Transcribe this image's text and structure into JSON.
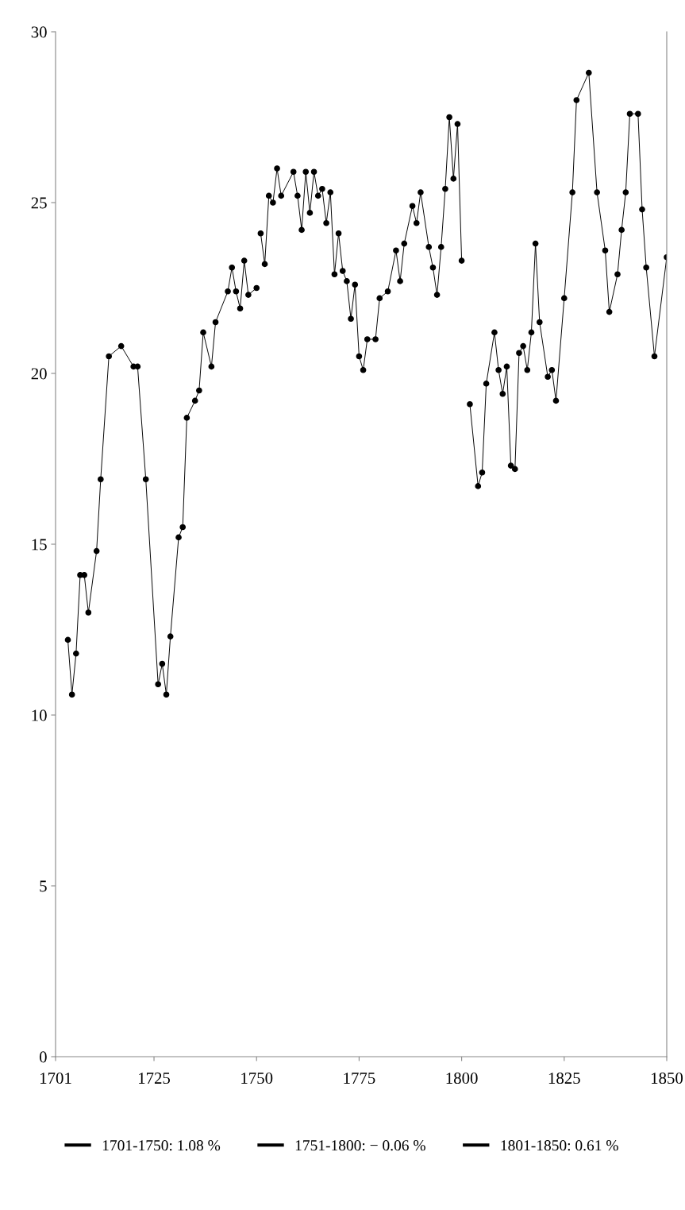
{
  "chart_data": {
    "type": "line",
    "xlim": [
      1701,
      1850
    ],
    "xticks": [
      1701,
      1725,
      1750,
      1775,
      1800,
      1825,
      1850
    ],
    "ylim": [
      0,
      30
    ],
    "yticks": [
      0,
      5,
      10,
      15,
      20,
      25,
      30
    ],
    "grid": false,
    "legend": "bottom",
    "marker": "circle",
    "line_style": "solid",
    "series": [
      {
        "name": "1701-1750: 1.08 %",
        "color": "#000000",
        "x": [
          1704,
          1705,
          1706,
          1707,
          1708,
          1709,
          1711,
          1712,
          1714,
          1717,
          1720,
          1721,
          1723,
          1726,
          1727,
          1728,
          1729,
          1731,
          1732,
          1733,
          1735,
          1736,
          1737,
          1739,
          1740,
          1743,
          1744,
          1745,
          1746,
          1747,
          1748,
          1750
        ],
        "values": [
          12.2,
          10.6,
          11.8,
          14.1,
          14.1,
          13.0,
          14.8,
          16.9,
          20.5,
          20.8,
          20.2,
          20.2,
          16.9,
          10.9,
          11.5,
          10.6,
          12.3,
          15.2,
          15.5,
          18.7,
          19.2,
          19.5,
          21.2,
          20.2,
          21.5,
          22.4,
          23.1,
          22.4,
          21.9,
          23.3,
          22.3,
          22.5
        ]
      },
      {
        "name": "1751-1800: − 0.06 %",
        "color": "#000000",
        "x": [
          1751,
          1752,
          1753,
          1754,
          1755,
          1756,
          1759,
          1760,
          1761,
          1762,
          1763,
          1764,
          1765,
          1766,
          1767,
          1768,
          1769,
          1770,
          1771,
          1772,
          1773,
          1774,
          1775,
          1776,
          1777,
          1779,
          1780,
          1782,
          1784,
          1785,
          1786,
          1788,
          1789,
          1790,
          1792,
          1793,
          1794,
          1795,
          1796,
          1797,
          1798,
          1799,
          1800
        ],
        "values": [
          24.1,
          23.2,
          25.2,
          25.0,
          26.0,
          25.2,
          25.9,
          25.2,
          24.2,
          25.9,
          24.7,
          25.9,
          25.2,
          25.4,
          24.4,
          25.3,
          22.9,
          24.1,
          23.0,
          22.7,
          21.6,
          22.6,
          20.5,
          20.1,
          21.0,
          21.0,
          22.2,
          22.4,
          23.6,
          22.7,
          23.8,
          24.9,
          24.4,
          25.3,
          23.7,
          23.1,
          22.3,
          23.7,
          25.4,
          27.5,
          25.7,
          27.3,
          23.3
        ]
      },
      {
        "name": "1801-1850: 0.61 %",
        "color": "#000000",
        "x": [
          1802,
          1804,
          1805,
          1806,
          1808,
          1809,
          1810,
          1811,
          1812,
          1813,
          1814,
          1815,
          1816,
          1817,
          1818,
          1819,
          1821,
          1822,
          1823,
          1825,
          1827,
          1828,
          1831,
          1833,
          1835,
          1836,
          1838,
          1839,
          1840,
          1841,
          1843,
          1844,
          1845,
          1847,
          1850
        ],
        "values": [
          19.1,
          16.7,
          17.1,
          19.7,
          21.2,
          20.1,
          19.4,
          20.2,
          17.3,
          17.2,
          20.6,
          20.8,
          20.1,
          21.2,
          23.8,
          21.5,
          19.9,
          20.1,
          19.2,
          22.2,
          25.3,
          28.0,
          28.8,
          25.3,
          23.6,
          21.8,
          22.9,
          24.2,
          25.3,
          27.6,
          27.6,
          24.8,
          23.1,
          20.5,
          23.4
        ]
      }
    ]
  }
}
